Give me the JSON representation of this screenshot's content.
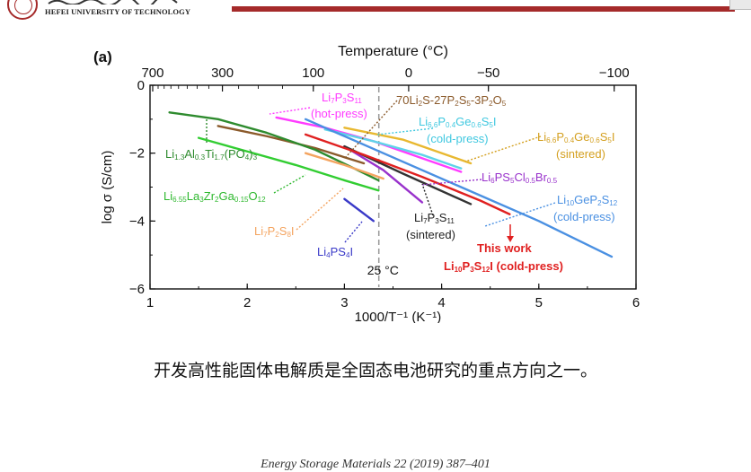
{
  "header": {
    "university": "HEFEI UNIVERSITY OF TECHNOLOGY",
    "brand_color": "#a52a2a"
  },
  "chart_data": {
    "type": "line",
    "panel_label": "(a)",
    "title": "",
    "xlabel": "1000/T⁻¹ (K⁻¹)",
    "ylabel": "log σ (S/cm)",
    "top_axis_label": "Temperature (°C)",
    "xlim": [
      1,
      6
    ],
    "ylim": [
      -6,
      0
    ],
    "x_ticks": [
      1,
      2,
      3,
      4,
      5,
      6
    ],
    "y_ticks": [
      0,
      -2,
      -4,
      -6
    ],
    "top_ticks": [
      {
        "label": "700",
        "celsius": 700
      },
      {
        "label": "300",
        "celsius": 300
      },
      {
        "label": "100",
        "celsius": 100
      },
      {
        "label": "0",
        "celsius": 0
      },
      {
        "label": "−50",
        "celsius": -50
      },
      {
        "label": "−100",
        "celsius": -100
      }
    ],
    "reference_line": {
      "x": 3.354,
      "label": "25 °C"
    },
    "grid": false,
    "series": [
      {
        "name": "Li7P3S11 (hot-press)",
        "color": "#ff3cff",
        "x": [
          2.3,
          2.8,
          3.3,
          3.8,
          4.2
        ],
        "y": [
          -0.95,
          -1.25,
          -1.65,
          -2.15,
          -2.55
        ]
      },
      {
        "name": "70Li2S-27P2S5-3P2O5",
        "color": "#8b5a2b",
        "x": [
          1.7,
          2.2,
          2.7,
          3.2
        ],
        "y": [
          -1.2,
          -1.5,
          -1.85,
          -2.3
        ]
      },
      {
        "name": "Li6.6P0.4Ge0.6S5I (cold-press)",
        "color": "#5fd3e8",
        "x": [
          2.8,
          3.3,
          3.8,
          4.2
        ],
        "y": [
          -1.3,
          -1.65,
          -2.05,
          -2.45
        ]
      },
      {
        "name": "Li6.6P0.4Ge0.6S5I (sintered)",
        "color": "#e8b830",
        "x": [
          3.0,
          3.6,
          4.3
        ],
        "y": [
          -1.25,
          -1.6,
          -2.3
        ]
      },
      {
        "name": "Li1.3Al0.3Ti1.7(PO4)3",
        "color": "#2e8b2e",
        "x": [
          1.2,
          1.7,
          2.2,
          2.7,
          3.1,
          3.35
        ],
        "y": [
          -0.8,
          -1.0,
          -1.4,
          -1.9,
          -2.45,
          -2.8
        ]
      },
      {
        "name": "Li6.55La3Zr2Ga0.15O12",
        "color": "#32cd32",
        "x": [
          1.5,
          2.0,
          2.5,
          3.0,
          3.35
        ],
        "y": [
          -1.55,
          -1.95,
          -2.35,
          -2.8,
          -3.1
        ]
      },
      {
        "name": "Li6PS5Cl0.5Br0.5",
        "color": "#9932cc",
        "x": [
          3.0,
          3.4,
          3.8
        ],
        "y": [
          -1.8,
          -2.5,
          -3.45
        ]
      },
      {
        "name": "Li10GeP2S12 (cold-press)",
        "color": "#4a90e2",
        "x": [
          2.6,
          3.4,
          4.2,
          5.0,
          5.75
        ],
        "y": [
          -1.0,
          -2.0,
          -3.0,
          -4.0,
          -5.05
        ]
      },
      {
        "name": "Li7P3S11 (sintered)",
        "color": "#333333",
        "x": [
          3.0,
          3.6,
          4.3
        ],
        "y": [
          -1.8,
          -2.6,
          -3.5
        ]
      },
      {
        "name": "Li7P2S8I",
        "color": "#f4a460",
        "x": [
          2.6,
          3.0,
          3.4
        ],
        "y": [
          -2.0,
          -2.35,
          -2.75
        ]
      },
      {
        "name": "Li4PS4I",
        "color": "#3a3ac8",
        "x": [
          3.0,
          3.3
        ],
        "y": [
          -3.35,
          -4.0
        ]
      },
      {
        "name": "Li10P3S12I (cold-press) — This work",
        "color": "#e02020",
        "x": [
          2.6,
          3.2,
          3.8,
          4.4,
          4.7
        ],
        "y": [
          -1.45,
          -2.05,
          -2.7,
          -3.4,
          -3.8
        ]
      }
    ],
    "annotations": {
      "li7p3s11_hot": {
        "main": "Li",
        "parts": [
          [
            "7",
            "s"
          ],
          [
            "P",
            ""
          ],
          [
            "3",
            "s"
          ],
          [
            "S",
            ""
          ],
          [
            "11",
            "s"
          ]
        ],
        "sub": "(hot-press)",
        "color": "#ff3cff"
      },
      "glass": {
        "main": "70Li",
        "parts": [
          [
            "2",
            "s"
          ],
          [
            "S-27P",
            ""
          ],
          [
            "2",
            "s"
          ],
          [
            "S",
            ""
          ],
          [
            "5",
            "s"
          ],
          [
            "-3P",
            ""
          ],
          [
            "2",
            "s"
          ],
          [
            "O",
            ""
          ],
          [
            "5",
            "s"
          ]
        ],
        "color": "#8b5a2b"
      },
      "lpgsi_cold": {
        "main": "Li",
        "parts": [
          [
            "6.6",
            "s"
          ],
          [
            "P",
            ""
          ],
          [
            "0.4",
            "s"
          ],
          [
            "Ge",
            ""
          ],
          [
            "0.6",
            "s"
          ],
          [
            "S",
            ""
          ],
          [
            "5",
            "s"
          ],
          [
            "I",
            ""
          ]
        ],
        "sub": "(cold-press)",
        "color": "#40c8e0"
      },
      "lpgsi_sint": {
        "main": "Li",
        "parts": [
          [
            "6.6",
            "s"
          ],
          [
            "P",
            ""
          ],
          [
            "0.4",
            "s"
          ],
          [
            "Ge",
            ""
          ],
          [
            "0.6",
            "s"
          ],
          [
            "S",
            ""
          ],
          [
            "5",
            "s"
          ],
          [
            "I",
            ""
          ]
        ],
        "sub": "(sintered)",
        "color": "#d4a020"
      },
      "latp": {
        "main": "Li",
        "parts": [
          [
            "1.3",
            "s"
          ],
          [
            "Al",
            ""
          ],
          [
            "0.3",
            "s"
          ],
          [
            "Ti",
            ""
          ],
          [
            "1.7",
            "s"
          ],
          [
            "(PO",
            ""
          ],
          [
            "4",
            "s"
          ],
          [
            ")",
            ""
          ],
          [
            "3",
            "s"
          ]
        ],
        "color": "#2e8b2e"
      },
      "llzo": {
        "main": "Li",
        "parts": [
          [
            "6.55",
            "s"
          ],
          [
            "La",
            ""
          ],
          [
            "3",
            "s"
          ],
          [
            "Zr",
            ""
          ],
          [
            "2",
            "s"
          ],
          [
            "Ga",
            ""
          ],
          [
            "0.15",
            "s"
          ],
          [
            "O",
            ""
          ],
          [
            "12",
            "s"
          ]
        ],
        "color": "#2eb82e"
      },
      "argyrodite": {
        "main": "Li",
        "parts": [
          [
            "6",
            "s"
          ],
          [
            "PS",
            ""
          ],
          [
            "5",
            "s"
          ],
          [
            "Cl",
            ""
          ],
          [
            "0.5",
            "s"
          ],
          [
            "Br",
            ""
          ],
          [
            "0.5",
            "s"
          ]
        ],
        "color": "#9932cc"
      },
      "lgps": {
        "main": "Li",
        "parts": [
          [
            "10",
            "s"
          ],
          [
            "GeP",
            ""
          ],
          [
            "2",
            "s"
          ],
          [
            "S",
            ""
          ],
          [
            "12",
            "s"
          ]
        ],
        "sub": "(cold-press)",
        "color": "#4a90e2"
      },
      "li7p3s11_sint": {
        "main": "Li",
        "parts": [
          [
            "7",
            "s"
          ],
          [
            "P",
            ""
          ],
          [
            "3",
            "s"
          ],
          [
            "S",
            ""
          ],
          [
            "11",
            "s"
          ]
        ],
        "sub": "(sintered)",
        "color": "#222222"
      },
      "li7p2s8i": {
        "main": "Li",
        "parts": [
          [
            "7",
            "s"
          ],
          [
            "P",
            ""
          ],
          [
            "2",
            "s"
          ],
          [
            "S",
            ""
          ],
          [
            "8",
            "s"
          ],
          [
            "I",
            ""
          ]
        ],
        "color": "#f4a460"
      },
      "li4ps4i": {
        "main": "Li",
        "parts": [
          [
            "4",
            "s"
          ],
          [
            "PS",
            ""
          ],
          [
            "4",
            "s"
          ],
          [
            "I",
            ""
          ]
        ],
        "color": "#3a3ac8"
      },
      "this_work": {
        "top": "This work",
        "main": "Li",
        "parts": [
          [
            "10",
            "s"
          ],
          [
            "P",
            ""
          ],
          [
            "3",
            "s"
          ],
          [
            "S",
            ""
          ],
          [
            "12",
            "s"
          ],
          [
            "I (cold-press)",
            ""
          ]
        ],
        "color": "#e02020"
      }
    }
  },
  "caption": "开发高性能固体电解质是全固态电池研究的重点方向之一。",
  "footer": "Energy Storage Materials 22 (2019) 387–401"
}
